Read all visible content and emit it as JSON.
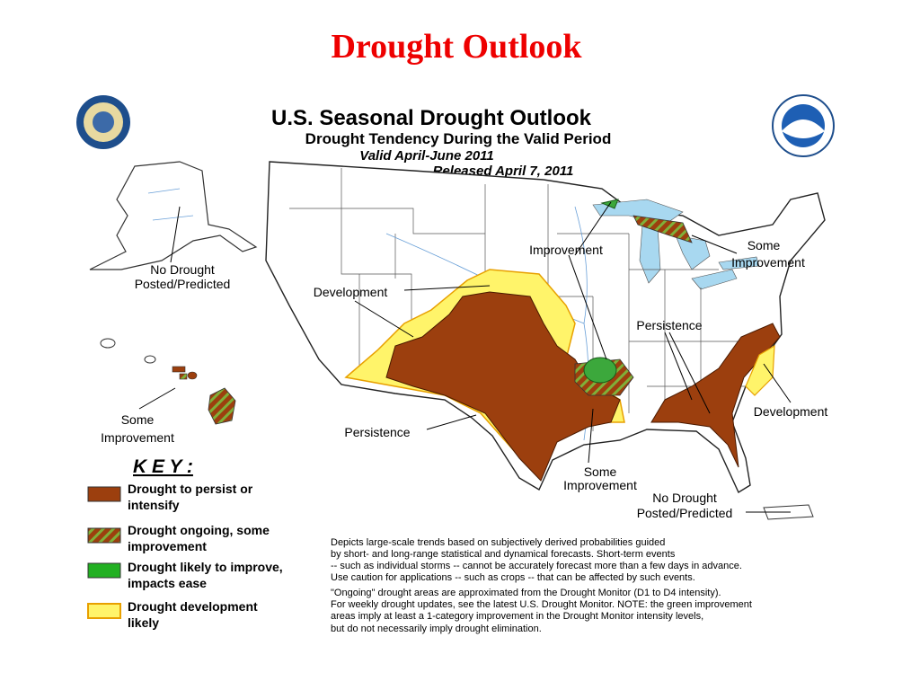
{
  "slide_title": "Drought Outlook",
  "map": {
    "title": "U.S. Seasonal Drought Outlook",
    "subtitle": "Drought Tendency During the Valid Period",
    "valid": "Valid April-June 2011",
    "released": "Released April 7, 2011",
    "labels": [
      {
        "lines": [
          "No Drought",
          "Posted/Predicted"
        ]
      },
      {
        "lines": [
          "Development"
        ]
      },
      {
        "lines": [
          "Improvement"
        ]
      },
      {
        "lines": [
          "Some",
          "Improvement"
        ]
      },
      {
        "lines": [
          "Persistence"
        ]
      },
      {
        "lines": [
          "Some",
          "Improvement"
        ]
      },
      {
        "lines": [
          "Persistence"
        ]
      },
      {
        "lines": [
          "Development"
        ]
      },
      {
        "lines": [
          "Some",
          "Improvement"
        ]
      },
      {
        "lines": [
          "No Drought",
          "Posted/Predicted"
        ]
      }
    ]
  },
  "key": {
    "title": "K E Y :",
    "items": [
      {
        "lines": [
          "Drought to persist or",
          "intensify"
        ]
      },
      {
        "lines": [
          "Drought ongoing, some",
          "improvement"
        ]
      },
      {
        "lines": [
          "Drought likely to improve,",
          "impacts ease"
        ]
      },
      {
        "lines": [
          "Drought development",
          "likely"
        ]
      }
    ]
  },
  "notes": {
    "lines": [
      "Depicts large-scale trends based on subjectively derived probabilities guided",
      "by short- and long-range statistical and dynamical forecasts. Short-term events",
      "-- such as individual storms -- cannot be accurately forecast more than a few days in advance.",
      "Use caution for applications -- such as crops -- that can be affected by such events.",
      "\"Ongoing\" drought areas are approximated from the Drought Monitor (D1 to D4 intensity).",
      "For weekly drought updates, see the latest U.S. Drought Monitor. NOTE: the green improvement",
      "areas imply at least a 1-category improvement in the Drought Monitor intensity levels,",
      "but do not necessarily imply drought elimination."
    ]
  }
}
